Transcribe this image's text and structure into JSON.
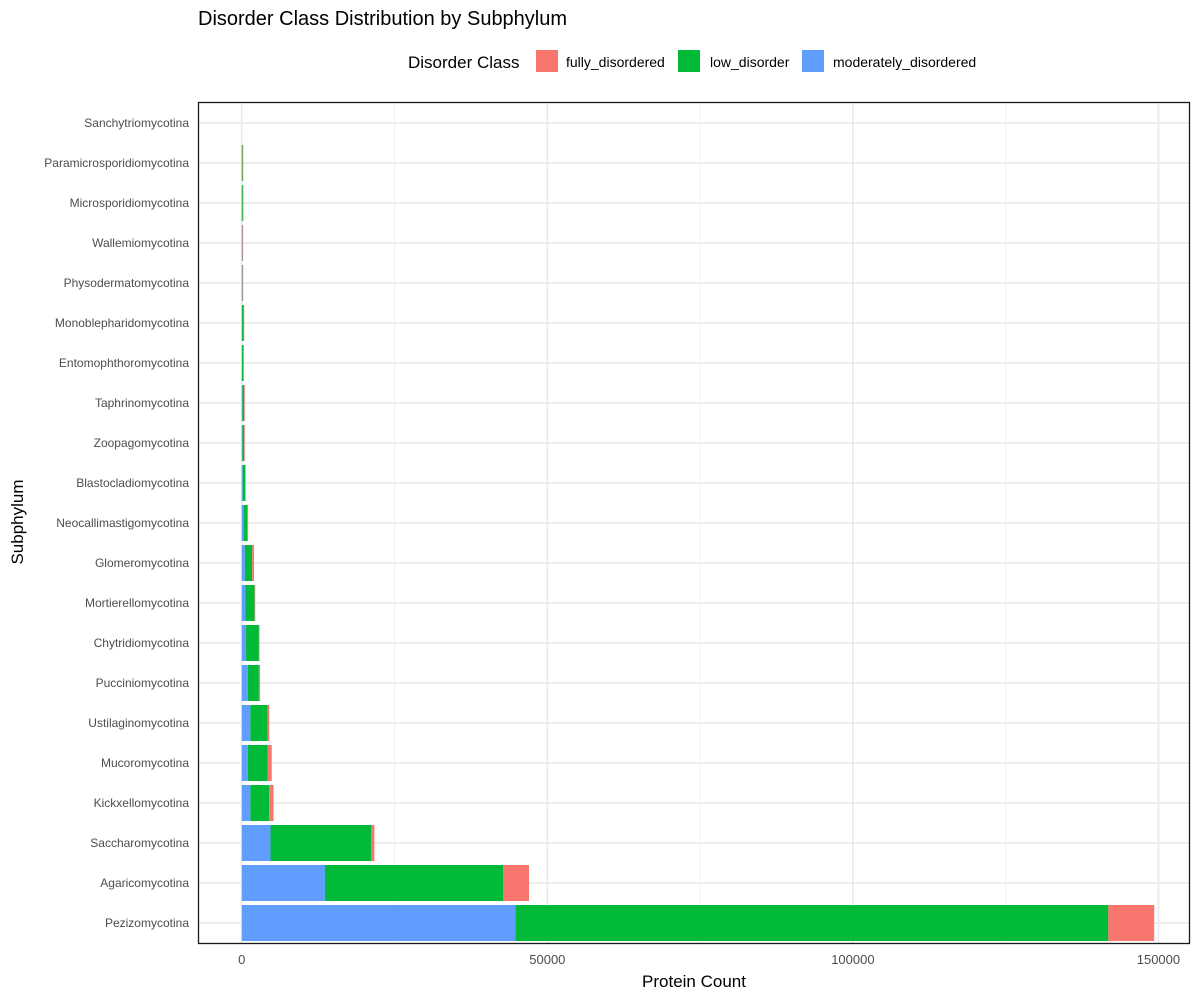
{
  "chart_data": {
    "type": "bar",
    "orientation": "horizontal",
    "stacked": true,
    "title": "Disorder Class Distribution by Subphylum",
    "xlabel": "Protein Count",
    "ylabel": "Subphylum",
    "xlim": [
      -7000,
      155000
    ],
    "xticks": [
      0,
      50000,
      100000,
      150000
    ],
    "xtick_labels": [
      "0",
      "50000",
      "100000",
      "150000"
    ],
    "grid": true,
    "legend": {
      "title": "Disorder Class",
      "position": "top",
      "entries": [
        {
          "name": "fully_disordered",
          "color": "#F8766D"
        },
        {
          "name": "low_disorder",
          "color": "#00BA38"
        },
        {
          "name": "moderately_disordered",
          "color": "#619CFF"
        }
      ]
    },
    "stack_order": [
      "moderately_disordered",
      "low_disorder",
      "fully_disordered"
    ],
    "categories": [
      "Pezizomycotina",
      "Agaricomycotina",
      "Saccharomycotina",
      "Kickxellomycotina",
      "Mucoromycotina",
      "Ustilaginomycotina",
      "Pucciniomycotina",
      "Chytridiomycotina",
      "Mortierellomycotina",
      "Glomeromycotina",
      "Neocallimastigomycotina",
      "Blastocladiomycotina",
      "Zoopagomycotina",
      "Taphrinomycotina",
      "Entomophthoromycotina",
      "Monoblepharidomycotina",
      "Physodermatomycotina",
      "Wallemiomycotina",
      "Microsporidiomycotina",
      "Paramicrosporidiomycotina",
      "Sanchytriomycotina"
    ],
    "series": [
      {
        "name": "moderately_disordered",
        "color": "#619CFF",
        "values": [
          44800,
          13600,
          4700,
          1400,
          1000,
          1400,
          1000,
          700,
          600,
          500,
          300,
          150,
          100,
          100,
          50,
          50,
          100,
          100,
          20,
          20,
          0
        ]
      },
      {
        "name": "low_disorder",
        "color": "#00BA38",
        "values": [
          97000,
          29200,
          16500,
          3100,
          3200,
          2800,
          1800,
          2100,
          1500,
          1200,
          600,
          400,
          300,
          300,
          200,
          250,
          30,
          20,
          150,
          120,
          0
        ]
      },
      {
        "name": "fully_disordered",
        "color": "#F8766D",
        "values": [
          7500,
          4200,
          500,
          700,
          700,
          300,
          200,
          100,
          100,
          300,
          150,
          20,
          20,
          20,
          100,
          10,
          5,
          5,
          5,
          5,
          0
        ]
      }
    ]
  }
}
